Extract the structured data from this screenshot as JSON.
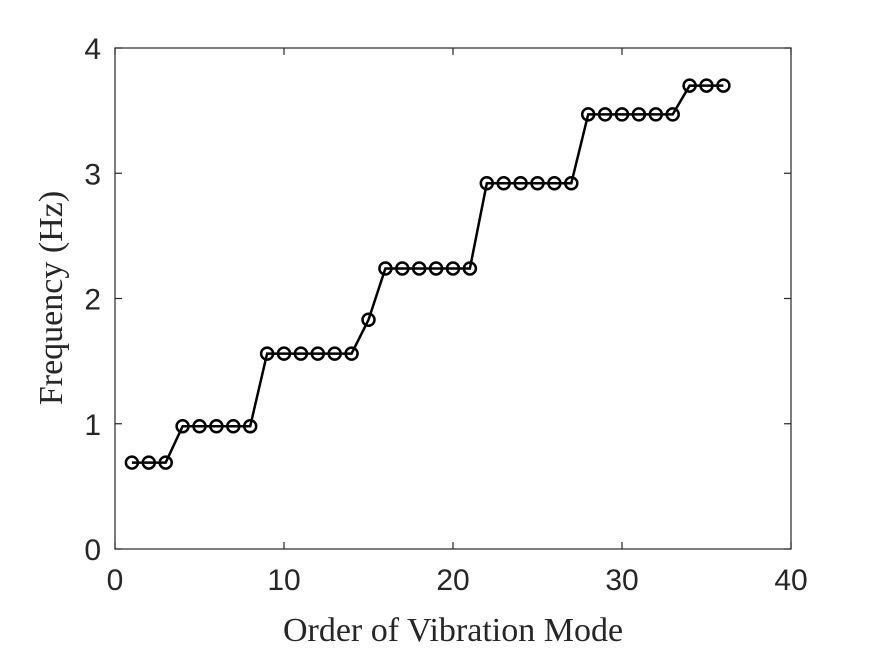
{
  "chart_data": {
    "type": "line",
    "xlabel": "Order of Vibration Mode",
    "ylabel": "Frequency (Hz)",
    "xlim": [
      0,
      40
    ],
    "ylim": [
      0,
      4
    ],
    "xticks": [
      0,
      10,
      20,
      30,
      40
    ],
    "yticks": [
      0,
      1,
      2,
      3,
      4
    ],
    "grid": false,
    "marker": "circle",
    "line_color": "#000000",
    "series": [
      {
        "x": [
          1,
          2,
          3,
          4,
          5,
          6,
          7,
          8,
          9,
          10,
          11,
          12,
          13,
          14,
          15,
          16,
          17,
          18,
          19,
          20,
          21,
          22,
          23,
          24,
          25,
          26,
          27,
          28,
          29,
          30,
          31,
          32,
          33,
          34,
          35,
          36
        ],
        "y": [
          0.69,
          0.69,
          0.69,
          0.98,
          0.98,
          0.98,
          0.98,
          0.98,
          1.56,
          1.56,
          1.56,
          1.56,
          1.56,
          1.56,
          1.83,
          2.24,
          2.24,
          2.24,
          2.24,
          2.24,
          2.24,
          2.92,
          2.92,
          2.92,
          2.92,
          2.92,
          2.92,
          3.47,
          3.47,
          3.47,
          3.47,
          3.47,
          3.47,
          3.7,
          3.7,
          3.7
        ]
      }
    ]
  }
}
